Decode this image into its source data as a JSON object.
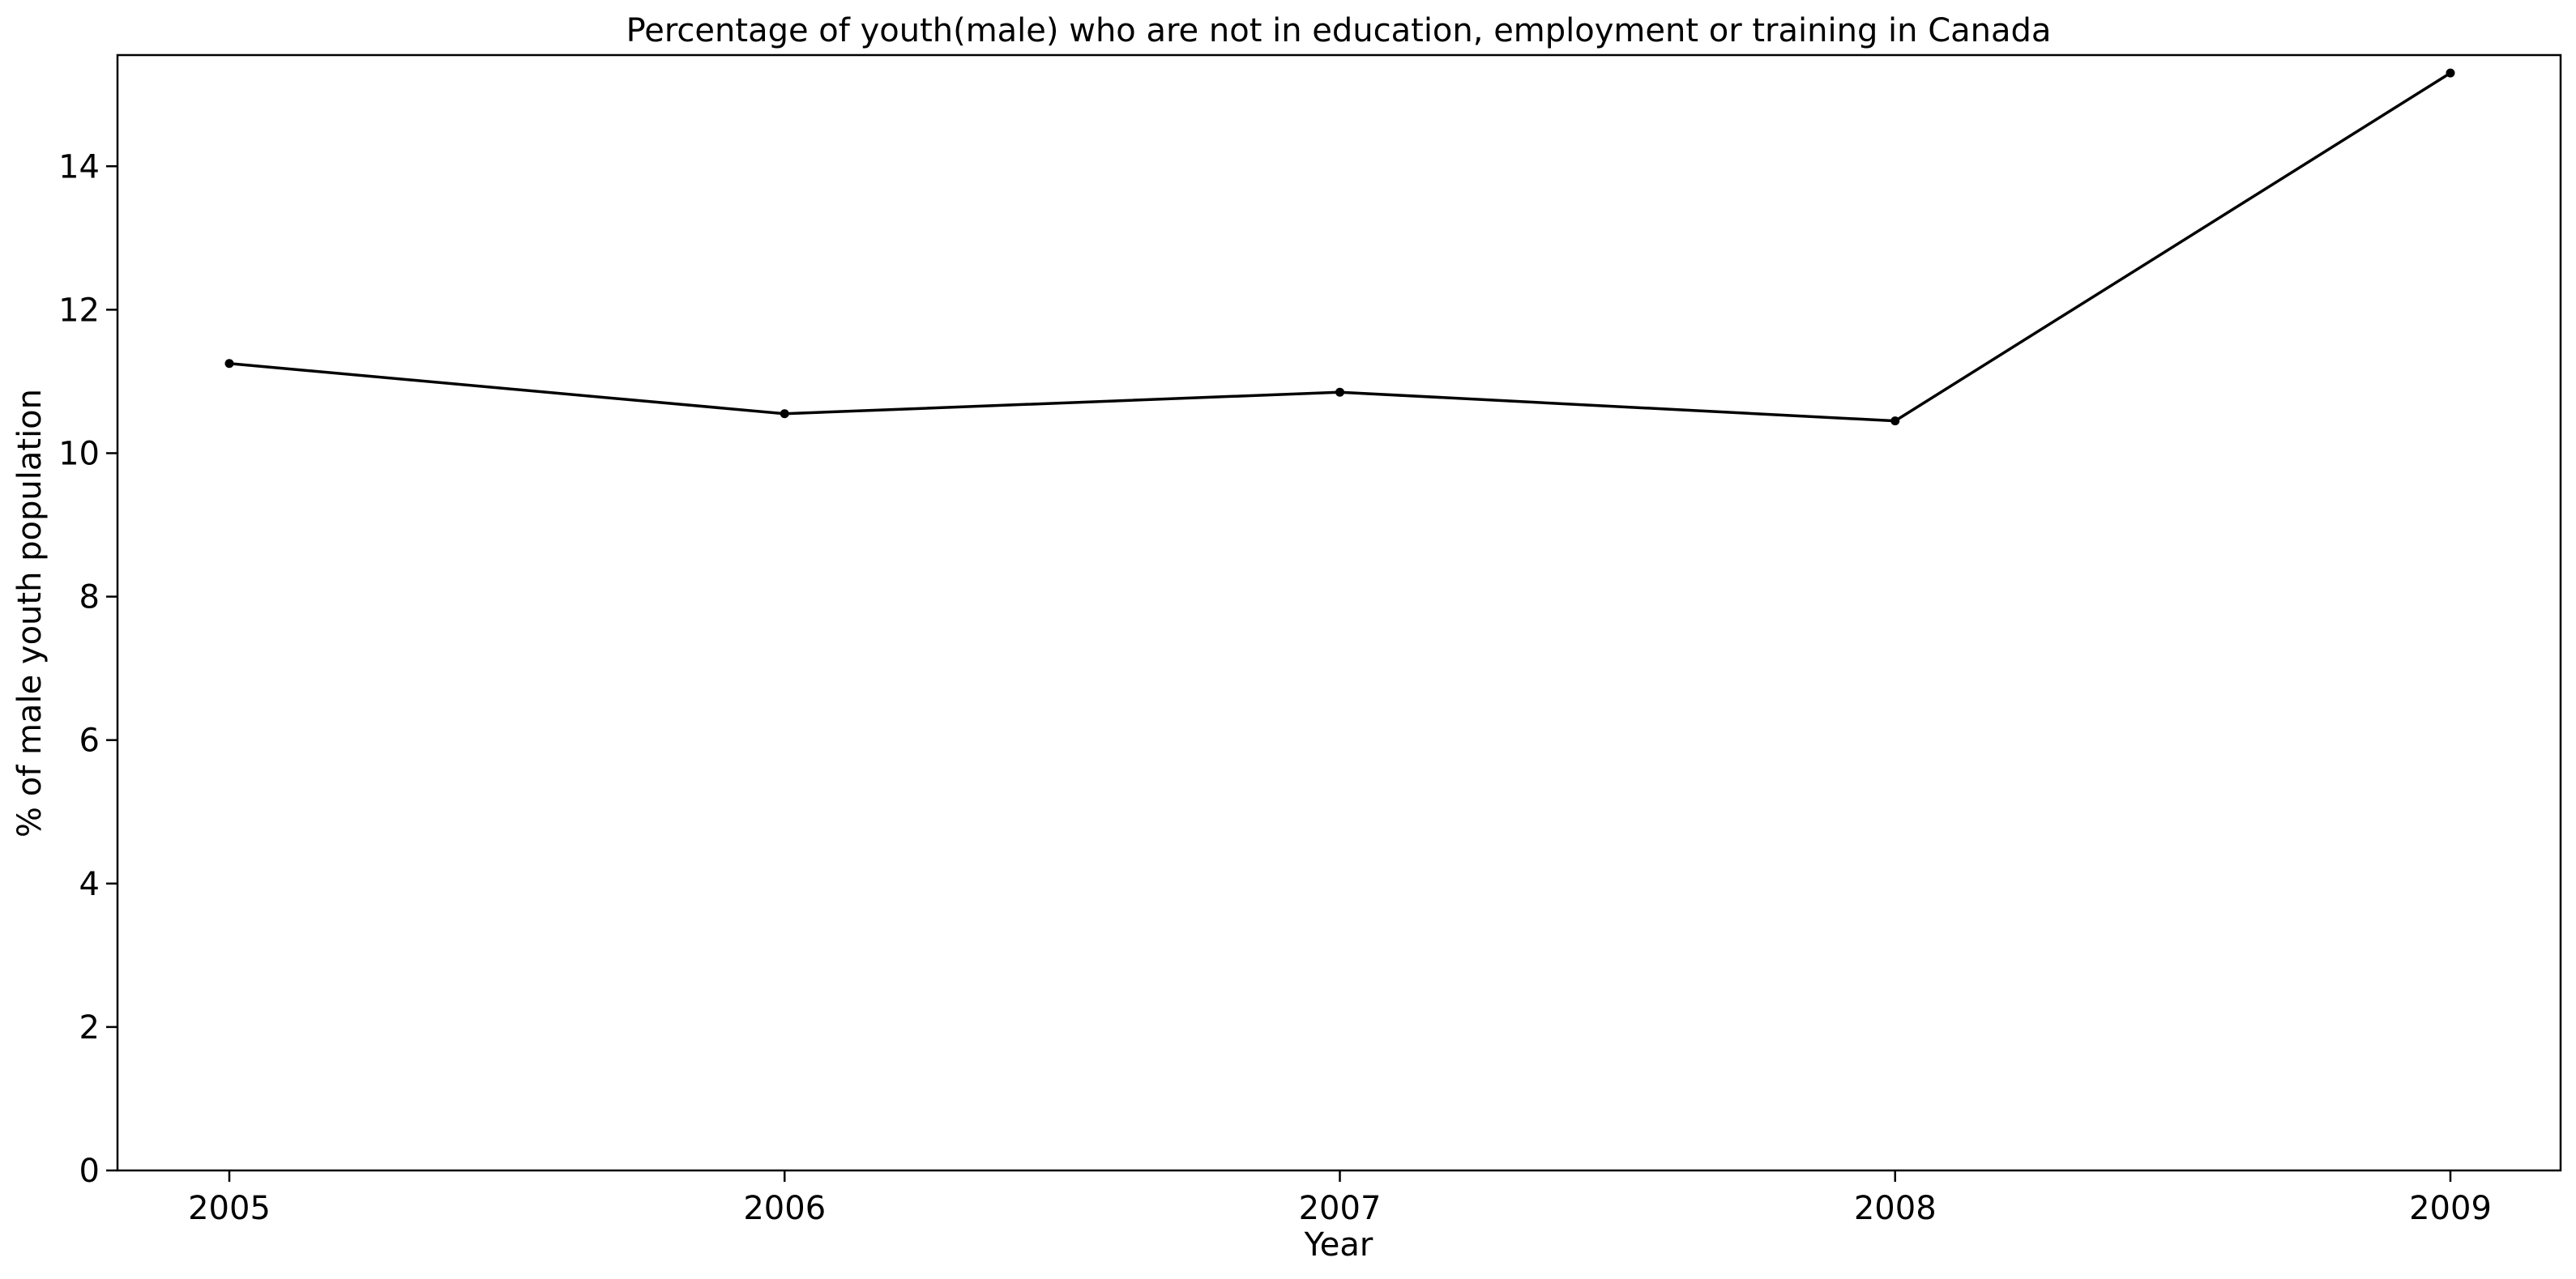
{
  "chart_data": {
    "type": "line",
    "title": "Percentage of youth(male) who are not in education, employment or training in Canada",
    "xlabel": "Year",
    "ylabel": "% of male youth population",
    "x": [
      "2005",
      "2006",
      "2007",
      "2008",
      "2009"
    ],
    "series": [
      {
        "values": [
          11.25,
          10.55,
          10.85,
          10.45,
          15.3
        ]
      }
    ],
    "ylim": [
      0,
      15.55
    ],
    "yticks": [
      0,
      2,
      4,
      6,
      8,
      10,
      12,
      14
    ],
    "grid": false,
    "line_color": "#000000"
  }
}
